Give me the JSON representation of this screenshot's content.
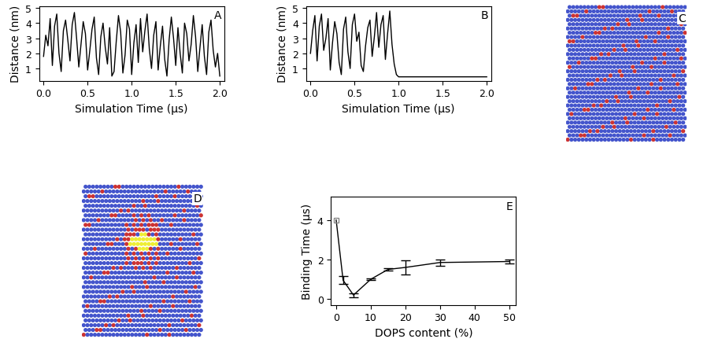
{
  "chart_data": [
    {
      "type": "line",
      "label": "A",
      "xlabel": "Simulation Time (µs)",
      "ylabel": "Distance (nm)",
      "color": "#000000",
      "x": [
        0.0,
        0.025,
        0.05,
        0.075,
        0.1,
        0.125,
        0.15,
        0.175,
        0.2,
        0.225,
        0.25,
        0.275,
        0.3,
        0.325,
        0.35,
        0.375,
        0.4,
        0.425,
        0.45,
        0.475,
        0.5,
        0.525,
        0.55,
        0.575,
        0.6,
        0.625,
        0.65,
        0.675,
        0.7,
        0.725,
        0.75,
        0.775,
        0.8,
        0.825,
        0.85,
        0.875,
        0.9,
        0.925,
        0.95,
        0.975,
        1.0,
        1.025,
        1.05,
        1.075,
        1.1,
        1.125,
        1.15,
        1.175,
        1.2,
        1.225,
        1.25,
        1.275,
        1.3,
        1.325,
        1.35,
        1.375,
        1.4,
        1.425,
        1.45,
        1.475,
        1.5,
        1.525,
        1.55,
        1.575,
        1.6,
        1.625,
        1.65,
        1.675,
        1.7,
        1.725,
        1.75,
        1.775,
        1.8,
        1.825,
        1.85,
        1.875,
        1.9,
        1.925,
        1.95,
        1.975,
        2.0
      ],
      "values": [
        1.8,
        3.2,
        2.5,
        4.3,
        1.2,
        3.8,
        4.6,
        2.0,
        0.8,
        3.5,
        4.2,
        2.9,
        1.5,
        3.9,
        4.7,
        3.0,
        1.1,
        2.6,
        4.1,
        3.3,
        0.9,
        2.2,
        3.6,
        4.4,
        1.7,
        0.6,
        3.1,
        4.0,
        2.4,
        1.3,
        3.7,
        0.5,
        0.8,
        2.8,
        4.5,
        3.4,
        0.7,
        1.9,
        4.2,
        3.6,
        0.6,
        2.7,
        3.9,
        1.4,
        4.3,
        2.1,
        3.5,
        4.6,
        2.3,
        1.0,
        3.2,
        4.1,
        0.9,
        2.5,
        3.8,
        1.6,
        0.5,
        2.9,
        4.4,
        3.0,
        1.2,
        3.7,
        2.0,
        0.7,
        4.0,
        3.3,
        1.5,
        2.6,
        4.5,
        3.1,
        0.8,
        2.4,
        3.9,
        1.8,
        0.6,
        3.4,
        4.2,
        2.2,
        1.1,
        2.0,
        0.5
      ],
      "xlim": [
        -0.05,
        2.05
      ],
      "ylim": [
        0.2,
        5.1
      ],
      "xticks": [
        {
          "value": 0.0,
          "label": "0.0"
        },
        0.5,
        {
          "value": 1.0,
          "label": "1.0"
        },
        1.5,
        {
          "value": 2.0,
          "label": "2.0"
        }
      ],
      "yticks": [
        1,
        2,
        3,
        4,
        5
      ]
    },
    {
      "type": "line",
      "label": "B",
      "xlabel": "Simulation Time (µs)",
      "ylabel": "Distance (nm)",
      "color": "#000000",
      "x": [
        0.0,
        0.025,
        0.05,
        0.075,
        0.1,
        0.125,
        0.15,
        0.175,
        0.2,
        0.225,
        0.25,
        0.275,
        0.3,
        0.325,
        0.35,
        0.375,
        0.4,
        0.425,
        0.45,
        0.475,
        0.5,
        0.525,
        0.55,
        0.575,
        0.6,
        0.625,
        0.65,
        0.675,
        0.7,
        0.725,
        0.75,
        0.775,
        0.8,
        0.825,
        0.85,
        0.875,
        0.9,
        0.925,
        0.95,
        0.975,
        1.0,
        1.025,
        1.05,
        1.075,
        1.1,
        1.125,
        1.15,
        1.175,
        1.2,
        1.225,
        1.25,
        1.275,
        1.3,
        1.325,
        1.35,
        1.375,
        1.4,
        1.425,
        1.45,
        1.475,
        1.5,
        1.525,
        1.55,
        1.575,
        1.6,
        1.625,
        1.65,
        1.675,
        1.7,
        1.725,
        1.75,
        1.775,
        1.8,
        1.825,
        1.85,
        1.875,
        1.9,
        1.925,
        1.95,
        1.975,
        2.0
      ],
      "values": [
        2.0,
        3.5,
        4.5,
        1.5,
        3.8,
        4.6,
        2.2,
        3.0,
        4.3,
        0.9,
        2.7,
        4.1,
        3.3,
        1.4,
        0.6,
        3.6,
        4.4,
        2.1,
        1.0,
        3.9,
        4.6,
        2.8,
        3.4,
        1.2,
        0.8,
        2.5,
        3.7,
        4.2,
        1.8,
        3.1,
        4.7,
        2.4,
        3.9,
        4.5,
        1.6,
        3.3,
        4.8,
        2.6,
        1.3,
        0.6,
        0.45,
        0.45,
        0.45,
        0.45,
        0.45,
        0.45,
        0.45,
        0.45,
        0.45,
        0.45,
        0.45,
        0.45,
        0.45,
        0.45,
        0.45,
        0.45,
        0.45,
        0.45,
        0.45,
        0.45,
        0.45,
        0.45,
        0.45,
        0.45,
        0.45,
        0.45,
        0.45,
        0.45,
        0.45,
        0.45,
        0.45,
        0.45,
        0.45,
        0.45,
        0.45,
        0.45,
        0.45,
        0.45,
        0.45,
        0.45,
        0.45
      ],
      "xlim": [
        -0.05,
        2.05
      ],
      "ylim": [
        0.2,
        5.1
      ],
      "xticks": [
        {
          "value": 0.0,
          "label": "0.0"
        },
        0.5,
        {
          "value": 1.0,
          "label": "1.0"
        },
        1.5,
        {
          "value": 2.0,
          "label": "2.0"
        }
      ],
      "yticks": [
        1,
        2,
        3,
        4,
        5
      ]
    },
    {
      "type": "image",
      "label": "C"
    },
    {
      "type": "image",
      "label": "D"
    },
    {
      "type": "errorbar",
      "label": "E",
      "xlabel": "DOPS content (%)",
      "ylabel": "Binding Time (µs)",
      "color": "#000000",
      "marker": "s",
      "x": [
        0,
        2,
        5,
        10,
        15,
        20,
        30,
        50
      ],
      "values": [
        4.0,
        0.95,
        0.2,
        1.0,
        1.5,
        1.6,
        1.85,
        1.9
      ],
      "errors": [
        null,
        0.2,
        0.1,
        0.05,
        0.07,
        0.35,
        0.15,
        0.1
      ],
      "xlim": [
        -1.5,
        52
      ],
      "ylim": [
        -0.3,
        5.2
      ],
      "xticks": [
        0,
        10,
        20,
        30,
        40,
        50
      ],
      "yticks": [
        0,
        2,
        4
      ]
    }
  ]
}
